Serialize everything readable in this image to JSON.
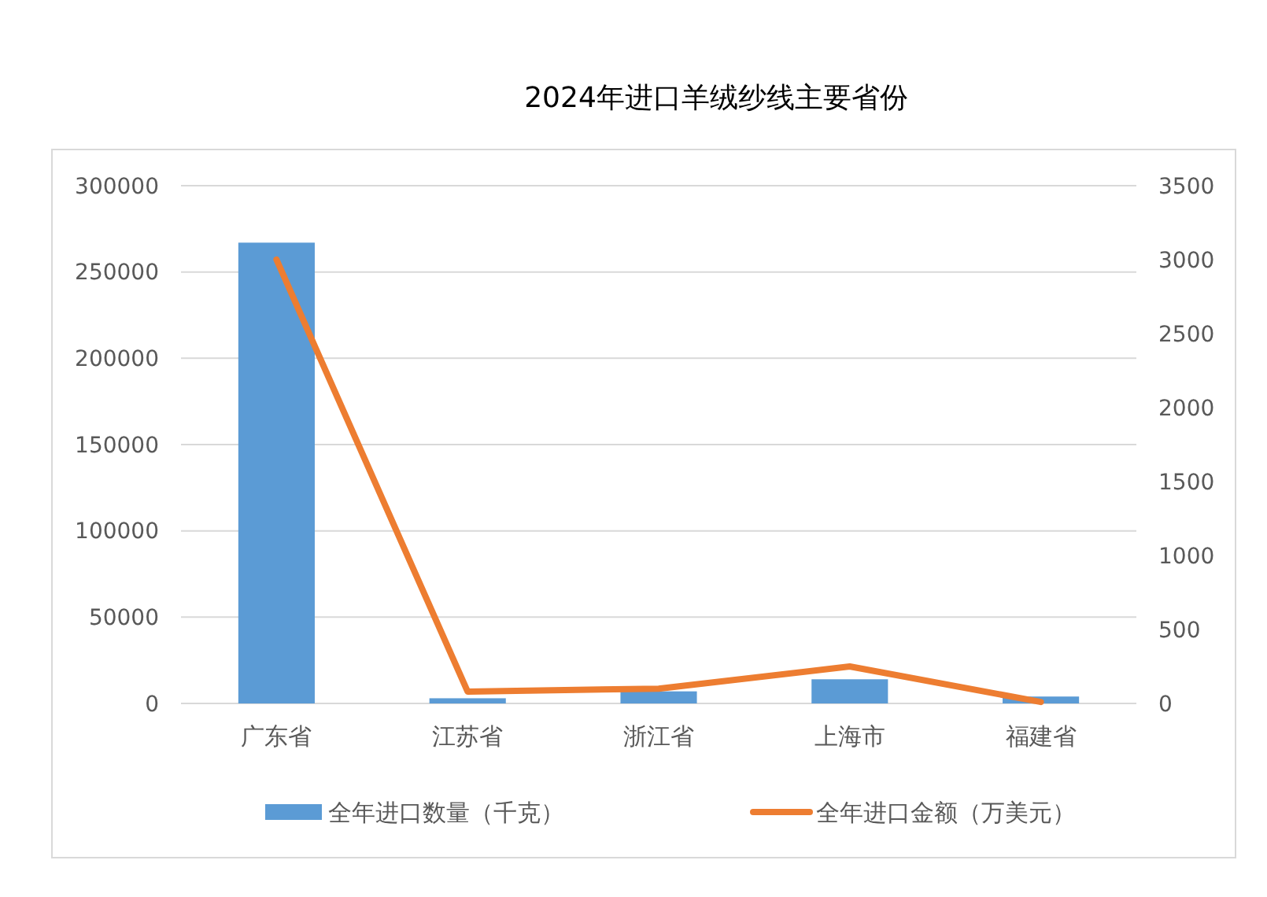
{
  "chart_data": {
    "type": "bar",
    "title": "2024年进口羊绒纱线主要省份",
    "categories": [
      "广东省",
      "江苏省",
      "浙江省",
      "上海市",
      "福建省"
    ],
    "series": [
      {
        "name": "全年进口数量（千克）",
        "color": "#5b9bd5",
        "values": [
          267000,
          3000,
          7000,
          14000,
          4000
        ]
      },
      {
        "name": "全年进口金额（万美元）",
        "type": "line",
        "axis": "y2",
        "color": "#ed7d31",
        "values": [
          3000,
          80,
          100,
          250,
          10
        ]
      }
    ],
    "ylim": [
      0,
      300000
    ],
    "yticks": [
      0,
      50000,
      100000,
      150000,
      200000,
      250000,
      300000
    ],
    "y2lim": [
      0,
      3500
    ],
    "y2ticks": [
      0,
      500,
      1000,
      1500,
      2000,
      2500,
      3000,
      3500
    ],
    "grid": "y",
    "legend": "bottom",
    "marker": "none"
  }
}
